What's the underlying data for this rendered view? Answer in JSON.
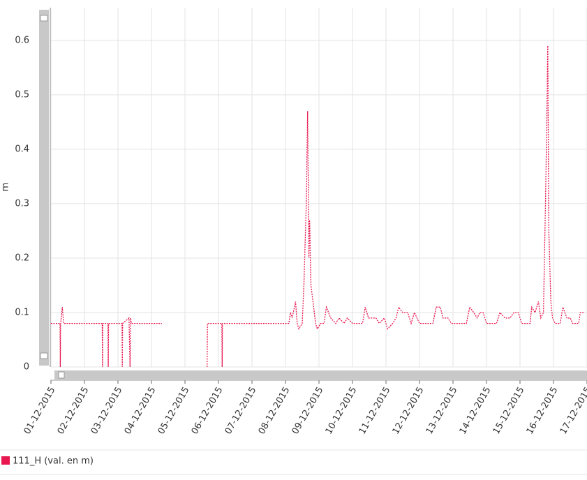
{
  "chart_data": {
    "type": "line",
    "y_label": "m",
    "xlim": [
      1,
      17
    ],
    "ylim": [
      0,
      0.66
    ],
    "xticks": [
      {
        "value": 1,
        "label": "01-12-2015"
      },
      {
        "value": 2,
        "label": "02-12-2015"
      },
      {
        "value": 3,
        "label": "03-12-2015"
      },
      {
        "value": 4,
        "label": "04-12-2015"
      },
      {
        "value": 5,
        "label": "05-12-2015"
      },
      {
        "value": 6,
        "label": "06-12-2015"
      },
      {
        "value": 7,
        "label": "07-12-2015"
      },
      {
        "value": 8,
        "label": "08-12-2015"
      },
      {
        "value": 9,
        "label": "09-12-2015"
      },
      {
        "value": 10,
        "label": "10-12-2015"
      },
      {
        "value": 11,
        "label": "11-12-2015"
      },
      {
        "value": 12,
        "label": "12-12-2015"
      },
      {
        "value": 13,
        "label": "13-12-2015"
      },
      {
        "value": 14,
        "label": "14-12-2015"
      },
      {
        "value": 15,
        "label": "15-12-2015"
      },
      {
        "value": 16,
        "label": "16-12-2015"
      },
      {
        "value": 17,
        "label": "17-12-2015"
      }
    ],
    "yticks": [
      0,
      0.1,
      0.2,
      0.3,
      0.4,
      0.5,
      0.6
    ],
    "grid": true,
    "legend": "bottom-left",
    "x": [
      1.0,
      1.27,
      1.28,
      1.29,
      1.34,
      1.38,
      2.53,
      2.54,
      2.55,
      2.7,
      2.71,
      2.72,
      3.12,
      3.13,
      3.14,
      3.33,
      3.36,
      3.38,
      3.4,
      4.31,
      5.0,
      5.66,
      5.67,
      6.1,
      6.11,
      6.12,
      8.1,
      8.15,
      8.2,
      8.3,
      8.35,
      8.4,
      8.5,
      8.55,
      8.62,
      8.66,
      8.7,
      8.72,
      8.76,
      8.82,
      8.9,
      8.95,
      9.05,
      9.15,
      9.22,
      9.35,
      9.5,
      9.6,
      9.75,
      9.85,
      10.0,
      10.3,
      10.38,
      10.48,
      10.7,
      10.8,
      10.95,
      11.05,
      11.2,
      11.3,
      11.38,
      11.5,
      11.65,
      11.75,
      11.85,
      12.0,
      12.4,
      12.5,
      12.62,
      12.7,
      12.85,
      12.95,
      13.4,
      13.5,
      13.62,
      13.72,
      13.8,
      13.9,
      14.0,
      14.3,
      14.4,
      14.55,
      14.7,
      14.82,
      14.95,
      15.05,
      15.3,
      15.35,
      15.45,
      15.55,
      15.62,
      15.7,
      15.76,
      15.8,
      15.83,
      15.86,
      15.92,
      15.97,
      16.05,
      16.2,
      16.28,
      16.4,
      16.5,
      16.57,
      16.75,
      16.8,
      16.9
    ],
    "series": [
      {
        "name": "111_H (val. en m)",
        "color": "#e8174f",
        "values": [
          0.08,
          0.08,
          0,
          0.08,
          0.11,
          0.08,
          0.08,
          0,
          0.08,
          0.08,
          0,
          0.08,
          0.08,
          0,
          0.08,
          0.09,
          0,
          0.09,
          0.08,
          0.08,
          null,
          0,
          0.08,
          0.08,
          0,
          0.08,
          0.08,
          0.1,
          0.09,
          0.12,
          0.08,
          0.07,
          0.08,
          0.15,
          0.3,
          0.47,
          0.2,
          0.27,
          0.15,
          0.12,
          0.08,
          0.07,
          0.08,
          0.08,
          0.11,
          0.09,
          0.08,
          0.09,
          0.08,
          0.09,
          0.08,
          0.08,
          0.11,
          0.09,
          0.09,
          0.08,
          0.09,
          0.07,
          0.08,
          0.09,
          0.11,
          0.1,
          0.1,
          0.08,
          0.1,
          0.08,
          0.08,
          0.11,
          0.11,
          0.09,
          0.09,
          0.08,
          0.08,
          0.11,
          0.1,
          0.09,
          0.1,
          0.1,
          0.08,
          0.08,
          0.1,
          0.09,
          0.09,
          0.1,
          0.1,
          0.08,
          0.08,
          0.11,
          0.1,
          0.12,
          0.09,
          0.1,
          0.3,
          0.45,
          0.59,
          0.25,
          0.12,
          0.09,
          0.08,
          0.08,
          0.11,
          0.09,
          0.09,
          0.08,
          0.08,
          0.1,
          0.1
        ]
      }
    ]
  }
}
